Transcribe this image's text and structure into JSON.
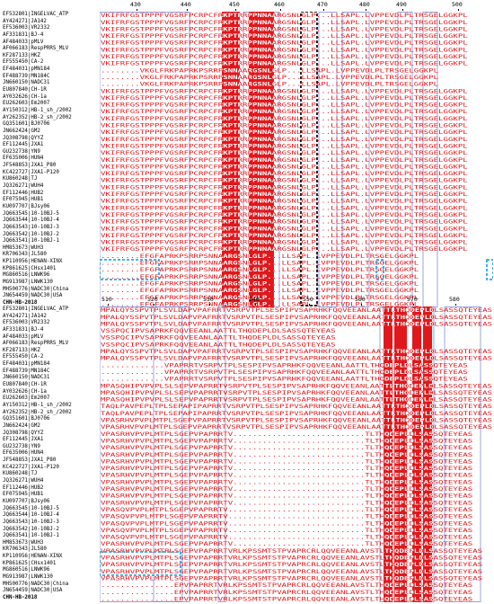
{
  "block1": {
    "ruler_numbers": [
      "430",
      "440",
      "450",
      "460",
      "470",
      "480",
      "490",
      "500"
    ],
    "sequence_names": [
      "EF532801|INGELVAC_ATP",
      "AY424271|JA142",
      "EF536003|VR2332",
      "AF331831|BJ-4",
      "AF484033|pMLV",
      "AF066183|RespPRRS_MLV",
      "KF287133|HKZ",
      "EF555450|CA-2",
      "EF484031|pMN184",
      "EF488739|MN184C",
      "JN660150|NADC31",
      "EU807840|CH-1R",
      "AY032626|CH-1a",
      "EU262603|Em2007",
      "AY150312|HB-1_sh_/2002",
      "AY262352|HB-2_sh_/2002",
      "GQ351601|BJ0706",
      "JN662424|GM2",
      "JQ308798|QYYZ",
      "EF112445|JXA1",
      "GU232738|YN9",
      "EF635006|HUN4",
      "JF548853|JXA1_P80",
      "KC422727|JXA1-P120",
      "KU860248|TJ",
      "JQ326271|WUH4",
      "EF112446|HUB2",
      "EF075945|HUB1",
      "KU097707|BJsy06",
      "JQ663545|10-10BJ-5",
      "JQ663544|10-10BJ-4",
      "JQ663543|10-10BJ-3",
      "JQ663542|10-10BJ-2",
      "JQ663541|10-10BJ-1",
      "HM853673|WUH3",
      "KR706343|JL580",
      "KP110956|HENAN-XINX",
      "KP861625|CHsx1401",
      "MG860516|LNWK96",
      "MG913987|LNWK130",
      "MH500776|NADC30|China",
      "JN654459|NADC30|USA",
      "CHN-HB-2018"
    ],
    "sequence_rows": [
      "VKIFRFGSTPPPFVGSRFPCRPCFRKPTRRPPNNAARGSNLGLP...LLSAPL.LVPPEVDLPLTRSGELGGKPL",
      "VKIFRFGSTPPPFVGSRFPCRPCFRKPTRRPPNNAARGSNLGLP...LLSAPL.LVPPEVDLPLTRSGELGGKPL",
      "VKIFRFGSTPPPFVGSRFPCRPCFRKPTRRPPNNAARGSNLGLP...LLSAPL.LVPPEVDLPLTRSGELGGKPL",
      "VKIFRFGSTPPPFVGSRFPCRPCFRKPTRRPPNNAARGSNLGLP...LLSAPL.LVPPEVDLPLTRSGELGGKPL",
      "VKIFRFGSTPPPFVGSRFPCRPCFRKPTRRPPNNAARGSNLGLP...LLSAPL.LVPPEVDLPLTRSGELGGKPL",
      "VKIFRFGSTPPPFVGSRFPCRPCFRKPTRRPPNNAARGSNLGLP...LLSAPL.LVPPEVDLPLTRSGELGGKPL",
      "VKIFRFGSTPPPFVGSRFPCRPCFRKPTRRPPNNAARGSNLGLP...LLSAPL.LVPPEVDLPLTRSGELGGKPL",
      "VKIFRFGSTPPPFVGSRFPCRPCFRKPTRRPPNNAARGSNLGLP...LLSAPL.LVPPEVDLPLTRSGELGGKPL",
      "........VKGLFRKPAPRKPSRRPSNNAARGSNLGLP...LLSAPL.LVPPEVDLPLTRSGELGGKPL",
      "........VKGLFRKPAPRKPSRRPSNNAARGSNLGLP...LLSAPL.LVPPEVDLPLTRSGELGGKPL",
      "........VKGLFRKPAPRKPSRRPSNNAARGSNLGLP...LLSAPL.LVPPEVDLPLTRSGELGGKPL",
      "VKIFRFGSTPPPFVGSRFPCRPCFRKPTRRPPNNAARGSNLGLP...LLSAPL.LVPPEVDLPLTRSGELGGKPL",
      "VKIFRFGSTPPPFVGSRFPCRPCFRKPTRRPPNNAARGSNLGLP...LLSAPL.LVPPEVDLPLTRSGELGGKPL",
      "VKIFRFGSTPPPFVGSRFPCRPCFRKPTRRPPNNAARGSNLGLP...LLSAPL.LVPPEVDLPLTRSGELGGKPL",
      "VKIFRFGSTPPPFVGSRFPCRPCFRKPTRRPPNNAARGSNLGLP...LLSAPL.LVPPEVDLPLTRSGELGGKPL",
      "VKIFRFGSTPPPFVGSRFPCRPCFRKPTRRPPNNAARGSNLGLP...LLSAPL.LVPPEVDLPLTRSGELGGKPL",
      "VKIFRFGSTPPPFVGSRFPCRPCFRKPTRRPPNNAARGSNLGLP...LLSAPL.LVPPEVDLPLTRSGELGGKPL",
      "VKIFRFGSTPPPFVGSRFPCRPCFRKPTRRPPNNAARGSNLGLP...LLSAPL.LVPPEVDLPLTRSGELGGKPL",
      "VKIFRFGSTPPPFVGSRFPCRPCFRKPTRRPPNNAARGSNLGLP...LLSAPL.LVPPEVDLPLTRSGELGGKPL",
      "VKIFRFGSTPPPFVGSRFPCRPCFRKPTRRPPNNAARGSNLGLP...LLSAPL.LVPPEVDLPLTRSGELGGKPL",
      "VKIFRFGSTPPPFVGSRFPCRPCFRKPTRRPPNNAARGSNLGLP...LLSAPL.LVPPEVDLPLTRSGELGGKPL",
      "VKIFRFGSTPPPFVGSRFPCRPCFRKPTRRPPNNAARGSNLGLP...LLSAPL.LVPPEVDLPLTRSGELGGKPL",
      "VKIFRFGSTPPPFVGSRFPCRPCFRKPTRRPPNNAARGSNLGLP...LLSAPL.LVPPEVDLPLTRSGELGGKPL",
      "VKIFRFGSTPPPFVGSRFPCRPCFRKPTRRPPNNAARGSNLGLP...LLSAPL.LVPPEVDLPLTRSGELGGKPL",
      "VKIFRFGSTPPPFVGSRFPCRPCFRKPTRRPPNNAARGSNLGLP...LLSAPL.LVPPEVDLPLTRSGELGGKPL",
      "VKIFRFGSTPPPFVGSRFPCRPCFRKPTRRPPNNAARGSNLGLP...LLSAPL.LVPPEVDLPLTRSGELGGKPL",
      "VKIFRFGSTPPPFVGSRFPCRPCFRKPTRRPPNNAARGSNLGLP...LLSAPL.LVPPEVDLPLTRSGELGGKPL",
      "VKIFRFGSTPPPFVGSRFPCRPCFRKPTRRPPNNAARGSNLGLP...LLSAPL.LVPPEVDLPLTRSGELGGKPL",
      "VKIFRFGSTPPPFVGSRFPCRPCFRKPTRRPPNNAARGSNLGLP...LLSAPL.LVPPEVDLPLTRSGELGGKPL",
      "VKIFRFGSTPPPFVGSRFPCRPCFRKPTRRPPNNAARGSNLGLP...LLSAPL.LVPPEVDLPLTRSGELGGKPL",
      "VKIFRFGSTPPPFVGSRFPCRPCFRKPTRRPPNNAARGSNLGLP...LLSAPL.LVPPEVDLPLTRSGELGGKPL",
      "VKIFRFGSTPPPFVGSRFPCRPCFRKPTRRPPNNAARGSNLGLP...LLSAPL.LVPPEVDLPLTRSGELGGKPL",
      "VKIFRFGSTPPPFVGSRFPCRPCFRKPTRRPPNNAARGSNLGLP...LLSAPL.LVPPEVDLPLTRSGELGGKPL",
      "VKIFRFGSTPPPFVGSRFPCRPCFRKPTRRPPNNAARGSNLGLP...LLSAPL.LVPPEVDLPLTRSGELGGKPL",
      "VKIFRFGSTPPPFVGSRFPCRPCFRKPTRRPPNNAARGSNLGLP...LLSAPL.LVPPEVDLPLTRSGELGGKPL",
      "........EFGFAPRKPSRRPSNNAARGSNLGLP...LLSAPL.LVPPEVDLPLTRSGELGGKPL",
      "........EFGFAPRKPSRRPSNNAARGSNLGLP...LLSAPL.LVPPEVDLPLTRSGELGGKPL",
      "........EFGFAPRKPSRRPSNNAARGSNLGLP...LLSAPL.LVPPEVDLPLTRSGELGGKPL",
      "........EFGFAPRKPSRRPSNNAARGSNLGLP...LLSAPL.LVPPEVDLPLTRSGELGGKPL",
      "........EFGFAPRKPSRRPSNNAARGSNLGLP...LLSAPL.LVPPEVDLPLTRSGELGGKPL",
      "........EFGFAPRKPSRRPSNNAARGSNLGLP...LLSAPL.LVPPEVDLPLTRSGELGGKPL",
      "........EFGFAPRKPSRRPSNNAARGSNLGLP...LLSAPL.LVPPEVDLPLTRSGELGGKPL",
      "........EFGFAPRKPSRRPSNNAARGSNLGLP...LLSAPL.LVPPEVDLPLTRSGELGGKPL"
    ]
  },
  "block2": {
    "ruler_numbers": [
      "510",
      "520",
      "530",
      "540",
      "550",
      "560",
      "570",
      "580"
    ],
    "sequence_names": [
      "EF532801|INGELVAC_ATP",
      "AY424271|JA142",
      "EF536003|VR2332",
      "AF331831|BJ-4",
      "AF484033|pMLV",
      "AF066183|RespPRRS_MLV",
      "KF287133|HKZ",
      "EF555450|CA-2",
      "EF484031|pMN184",
      "EF488739|MN184C",
      "JN660150|NADC31",
      "EU807840|CH-1R",
      "AY032626|CH-1a",
      "EU262603|Em2007",
      "AY150312|HB-1_sh_/2002",
      "AY262352|HB-2_sh_/2002",
      "GQ351601|BJ0706",
      "JN662424|GM2",
      "JQ308798|QYYZ",
      "EF112445|JXA1",
      "GU232738|YN9",
      "EF635006|HUN4",
      "JF548853|JXA1_P80",
      "KC422727|JXA1-P120",
      "KU860248|TJ",
      "JQ326271|WUH4",
      "EF112446|HUB2",
      "EF075945|HUB1",
      "KU097707|BJsy06",
      "JQ663545|10-10BJ-5",
      "JQ663544|10-10BJ-4",
      "JQ663543|10-10BJ-3",
      "JQ663542|10-10BJ-2",
      "JQ663541|10-10BJ-1",
      "HM853673|WUH3",
      "KR706343|JL580",
      "KP110956|HENAN-XINX",
      "KP861625|CHsx1401",
      "MG860516|LNWK96",
      "MG913987|LNWK130",
      "MH500776|NADC30|China",
      "JN654459|NADC30|USA",
      "CHN-HB-2018"
    ],
    "sequence_rows": [
      "MPALQYSSPVTPLSVLDAPVPAFRRTVSRPVTPLSESPIPVSAPRHKFQQVEEANLAATTLTHQDEPLDLSASSQTEYEAS",
      "MPALQYSSPVTPLSVLDAPVPAFRRTVSRPVTPLSESPIPVSAPRHKFQQVEEANLAATTLTHQDEPLDLSASSQTEYEAS",
      "MPALQYSSPVTPLSVLDAPVPAFRRTVSRPVTPLSESPIPVSAPRHKFQQVEEANLAATTLTHQDEPLDLSASSQTEYEAS",
      "VSSPQCIPVSAPRKFQQVEEANLAATTLTHQDEPLDLSASSQTEYEAS",
      "VSSPQCIPVSAPRKFQQVEEANLAATTLTHQDEPLDLSASSQTEYEAS",
      "VSSPQCIPVSAPRKFQQVEEANLAATTLTHQDEPLDLSASSQTEYEAS",
      "MPALQYSSPVTPLSVLDAPVPAFRRTVSRPVTPLSESPIPVSAPRHKFQQVEEANLAATTLTHQDEPLDLSASSQTEYEAS",
      "MPALQYSSPVTPLSVLDAPVPAFRRTVSRPVTPLSESPIPVSAPRHKFQQVEEANLAATTLTHQDEPLDLSASSQTEYEAS",
      ".............VPAPRRTVSRPVTPLSESPIPVSAPRHKFQQVEEANLAATTLTHQDEPLDLSASSQTEYEAS",
      ".............VPAPRRTVSRPVTPLSESPIPVSAPRHKFQQVEEANLAATTLTHQDEPLDLSASSQTEYEAS",
      ".............VPAPRRTVSRPVTPLSESPIPVSAPRHKFQQVEEANLAATTLTHQDEPLDLSASSQTEYEAS",
      "MPASQHIPVPVPLSLSEPVPAPRRTVSRPVTPLSESPIPVSAPRHKFQQVEEANLAATTLTHQDEPLDLSASSQTEYEAS",
      "MPASQHIPVPVPLSLSEPVPAPRRTVSRPVTPLSESPIPVSAPRHKFQQVEEANLAATTLTHQDEPLDLSASSQTEYEAS",
      "MPASQHIPVPVPLSLSEPVPAPRRTVSRPVTPLSESPIPVSAPRHKFQQVEEANLAATTLTHQDEPLDLSASSQTEYEAS",
      "TAQLPAVPEPLTPLSEPAPIPAPRRTVSRPVTPLSESPIPVSAPRHKFQQVEEANLAATTLTHQDEPLDLSASSQTEYEAS",
      "TAQLPAVPEPLTPLSEPAPIPAPRRTVSRPVTPLSESPIPVSAPRHKFQQVEEANLAATTLTHQDEPLDLSASSQTEYEAS",
      "VPASRHVPVPLMTPLSGEPVPAPRRTVSRPVTPLSESPIPVSAPRHKFQQVEEANLAATTLTHQDEPLDLSASSQTEYEAS",
      "VPASRHVPVPLMTPLSGEPVPAPRRTVSRPVTPLSESPIPVSAPRHKFQQVEEANLAATTLTHQDEPLDLSASSQTEYEAS",
      "VPASRHVPVPLMTPLSGEPVPAPRRTV...........................TLTHQDEPLDLSASSQTEYEAS",
      "VPASRHVPVPLMTPLSGEPVPAPRRTV...........................TLTHQDEPLDLSASSQTEYEAS",
      "VPASRHVPVPLMTPLSGEPVPAPRRTV...........................TLTHQDEPLDLSASSQTEYEAS",
      "VPASRHVPVPLMTPLSGEPVPAPRRTV...........................TLTHQDEPLDLSASSQTEYEAS",
      "VPASRHVPVPLMTPLSGEPVPAPRRTV...........................TLTHQDEPLDLSASSQTEYEAS",
      "VPASRHVPVPLMTPLSGEPVPAPRRTV...........................TLTHQDEPLDLSASSQTEYEAS",
      "VPASRHVPVPLMTPLSGEPVPAPRRTV...........................TLTHQDEPLDLSASSQTEYEAS",
      "VPASRHVPVPLMTPLSGEPVPAPRRTV...........................TLTHQDEPLDLSASSQTEYEAS",
      "VPASRHVPVPLMTPLSGEPVPAPRRTV...........................TLTHQDEPLDLSASSQTEYEAS",
      "VPASRHVPVPLMTPLSGEPVPAPRRTV...........................TLTHQDEPLDLSASSQTEYEAS",
      "VPASRHVPVPLMTPLSGEPVPAPRRTV...........................TLTHQDEPLDLSASSQTEYEAS",
      "VPASQVPVPLMTPLSGEPVPAPRRTV............................TLTHQDEPLDLSASSQTEYEAS",
      "VPASQVPVPLMTPLSGEPVPAPRRTV............................TLTHQDEPLDLSASSQTEYEAS",
      "VPASQVPVPLMTPLSGEPVPAPRRTV............................TLTHQDEPLDLSASSQTEYEAS",
      "VPASQVPVPLMTPLSGEPVPAPRRTV............................TLTHQDEPLDLSASSQTEYEAS",
      "VPASQVPVPLMTPLSGEPVPAPRRTV............................TLTHQDEPLDLSASSQTEYEAS",
      "VPASRHVPVPLMTPLSGEPVPAPRRTV...........................TLTHQDEPLDLSASSQTEYEAS",
      "VPASRHVPVPLMTPLSGEPVPAPRRTVRLKPSSMTSTPVAPRCRLQQVEEANLAVSTLTHQDEPLDLSASSQTEYEAS",
      "VPASRHVPVPLMTPLSGEPVPAPRRTVRLKPSSMTSTPVAPRCRLQQVEEANLAVSTLTHQDEPLDLSASSQTEYEAS",
      "VPASRHVPVPLMTPLSGEPVPAPRRTVRLKPSSMTSTPVAPRCRLQQVEEANLAVSTLTHQDEPLDLSASSQTEYEAS",
      "VPASRHVPVPLMTPLSGEPVPAPRRTVRLKPSSMTSTPVAPRCRLQQVEEANLAVSTLTHQDEPLDLSASSQTEYEAS",
      "VPASRHVPVPLMTPLSGEPVPAPRRTVRLKPSSMTSTPVAPRCRLQQVEEANLAVSTLTHQDEPLDLSASSQTEYEAS",
      "...............EPVPAPRRTVRLKPSSMTSTPVAPRCRLQQVEEANLAVSTLTHQDEPLDLSASSQTEYEAS",
      "...............EPVPAPRRTVRLKPSSMTSTPVAPRCRLQQVEEANLAVSTLTHQDEPLDLSASSQTEYEAS",
      "...............EPVPAPRRTVRLKPSSMTSTPVAPRCRLQQVEEANLAVSTLTHQDEPLDLSASSQTEYEAS"
    ]
  },
  "colors": {
    "conserved_bg": "#e0181c",
    "conserved_text": "#ffffff",
    "similar_text": "#e0181c",
    "similar_bg": "#fde7e7",
    "frame": "#7f8fd6",
    "deletion_box_black": "#111111",
    "deletion_box_blue": "#2ba8e6"
  }
}
